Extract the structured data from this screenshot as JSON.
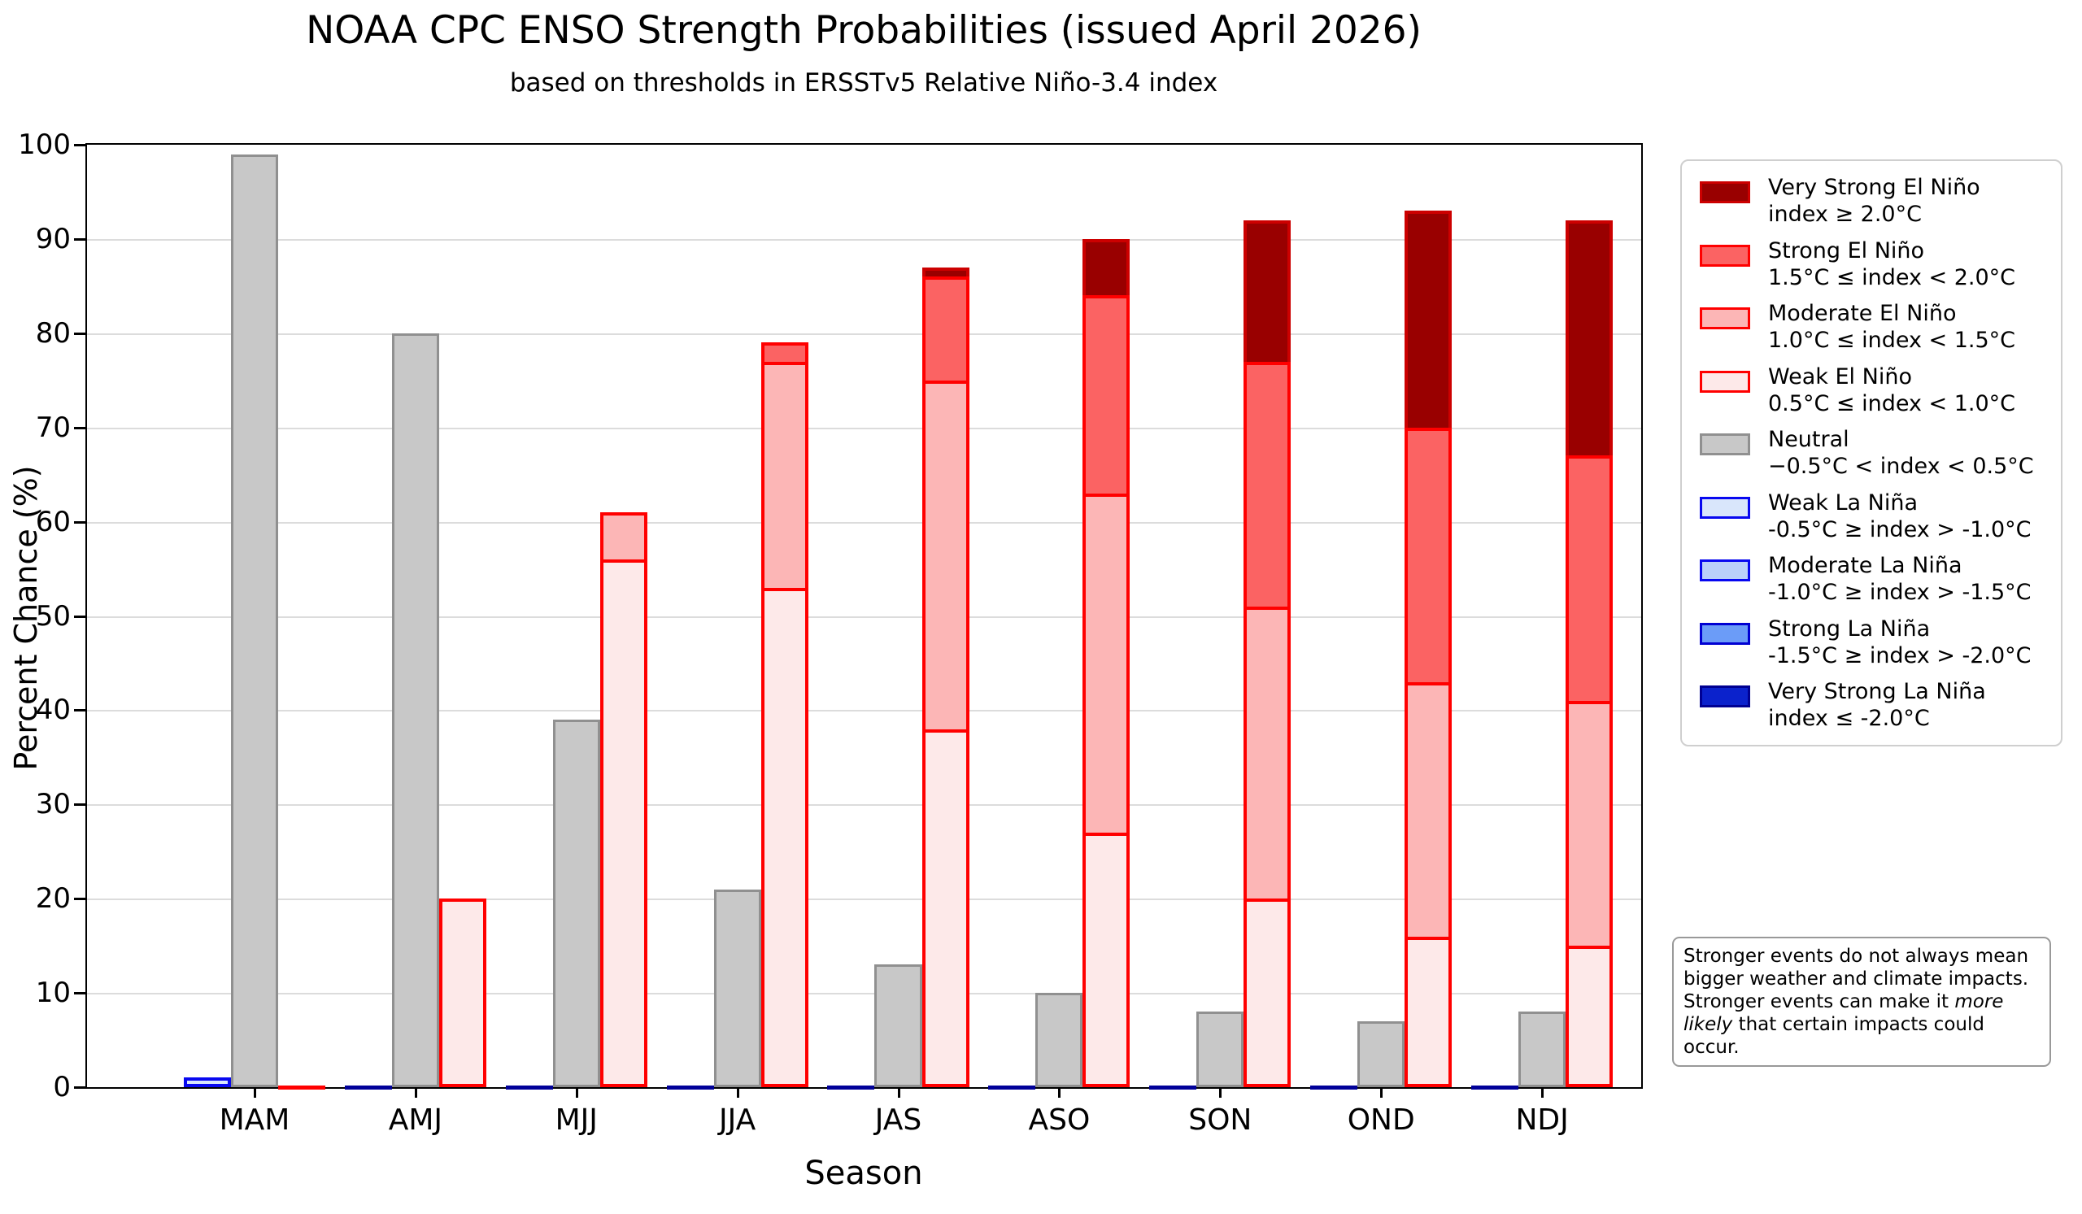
{
  "title": "NOAA CPC ENSO Strength Probabilities (issued April 2026)",
  "subtitle": "based on thresholds in ERSSTv5 Relative Niño-3.4 index",
  "axes": {
    "ylabel": "Percent Chance (%)",
    "xlabel": "Season",
    "ylim": [
      0,
      100
    ],
    "yticks": [
      0,
      10,
      20,
      30,
      40,
      50,
      60,
      70,
      80,
      90,
      100
    ],
    "grid": "horizontal"
  },
  "chart_data": {
    "type": "bar",
    "stacked": true,
    "grouped": true,
    "categories": [
      "MAM",
      "AMJ",
      "MJJ",
      "JJA",
      "JAS",
      "ASO",
      "SON",
      "OND",
      "NDJ"
    ],
    "bars_per_category": [
      "la_nina_stack",
      "neutral",
      "el_nino_stack"
    ],
    "series": [
      {
        "key": "weak_la_nina",
        "name": "Weak La Niña",
        "stack": "la_nina",
        "values": [
          1,
          0,
          0,
          0,
          0,
          0,
          0,
          0,
          0
        ]
      },
      {
        "key": "moderate_la_nina",
        "name": "Moderate La Niña",
        "stack": "la_nina",
        "values": [
          0,
          0,
          0,
          0,
          0,
          0,
          0,
          0,
          0
        ]
      },
      {
        "key": "strong_la_nina",
        "name": "Strong La Niña",
        "stack": "la_nina",
        "values": [
          0,
          0,
          0,
          0,
          0,
          0,
          0,
          0,
          0
        ]
      },
      {
        "key": "very_strong_la_nina",
        "name": "Very Strong La Niña",
        "stack": "la_nina",
        "values": [
          0,
          0,
          0,
          0,
          0,
          0,
          0,
          0,
          0
        ]
      },
      {
        "key": "neutral",
        "name": "Neutral",
        "stack": "neutral",
        "values": [
          99,
          80,
          39,
          21,
          13,
          10,
          8,
          7,
          8
        ]
      },
      {
        "key": "weak_el_nino",
        "name": "Weak El Niño",
        "stack": "el_nino",
        "values": [
          0,
          20,
          56,
          53,
          38,
          27,
          20,
          16,
          15
        ]
      },
      {
        "key": "moderate_el_nino",
        "name": "Moderate El Niño",
        "stack": "el_nino",
        "values": [
          0,
          0,
          5,
          24,
          37,
          36,
          31,
          27,
          26
        ]
      },
      {
        "key": "strong_el_nino",
        "name": "Strong El Niño",
        "stack": "el_nino",
        "values": [
          0,
          0,
          0,
          2,
          11,
          21,
          26,
          27,
          26
        ]
      },
      {
        "key": "very_strong_el_nino",
        "name": "Very Strong El Niño",
        "stack": "el_nino",
        "values": [
          0,
          0,
          0,
          0,
          1,
          6,
          15,
          23,
          25
        ]
      }
    ],
    "zero_stack_line_colors": {
      "la_nina": "#000099",
      "el_nino": "#ff0000"
    }
  },
  "palette": {
    "very_strong_el_nino": {
      "fill": "#990000",
      "edge": "#cc0000"
    },
    "strong_el_nino": {
      "fill": "#fb6363",
      "edge": "#ff0000"
    },
    "moderate_el_nino": {
      "fill": "#fcb6b6",
      "edge": "#ff0000"
    },
    "weak_el_nino": {
      "fill": "#fde9e9",
      "edge": "#ff0000"
    },
    "neutral": {
      "fill": "#c8c8c8",
      "edge": "#909090"
    },
    "weak_la_nina": {
      "fill": "#d9e6fb",
      "edge": "#0808f0"
    },
    "moderate_la_nina": {
      "fill": "#bad0fa",
      "edge": "#0808f0"
    },
    "strong_la_nina": {
      "fill": "#6b9cf8",
      "edge": "#0000d2"
    },
    "very_strong_la_nina": {
      "fill": "#0b22cc",
      "edge": "#000092"
    }
  },
  "legend": {
    "entries": [
      {
        "key": "very_strong_el_nino",
        "label": "Very Strong El Niño",
        "threshold": "index ≥ 2.0°C"
      },
      {
        "key": "strong_el_nino",
        "label": "Strong El Niño",
        "threshold": "1.5°C ≤ index < 2.0°C"
      },
      {
        "key": "moderate_el_nino",
        "label": "Moderate El Niño",
        "threshold": "1.0°C ≤ index < 1.5°C"
      },
      {
        "key": "weak_el_nino",
        "label": "Weak El Niño",
        "threshold": "0.5°C ≤ index < 1.0°C"
      },
      {
        "key": "neutral",
        "label": "Neutral",
        "threshold": "−0.5°C < index < 0.5°C"
      },
      {
        "key": "weak_la_nina",
        "label": "Weak La Niña",
        "threshold": "-0.5°C ≥ index > -1.0°C"
      },
      {
        "key": "moderate_la_nina",
        "label": "Moderate La Niña",
        "threshold": "-1.0°C ≥ index > -1.5°C"
      },
      {
        "key": "strong_la_nina",
        "label": "Strong La Niña",
        "threshold": "-1.5°C ≥ index > -2.0°C"
      },
      {
        "key": "very_strong_la_nina",
        "label": "Very Strong La Niña",
        "threshold": "index ≤ -2.0°C"
      }
    ]
  },
  "note": {
    "text_before_em": "Stronger events do not always mean bigger weather and climate impacts. Stronger events can make it ",
    "em_text": "more likely",
    "text_after_em": " that certain impacts could occur."
  }
}
